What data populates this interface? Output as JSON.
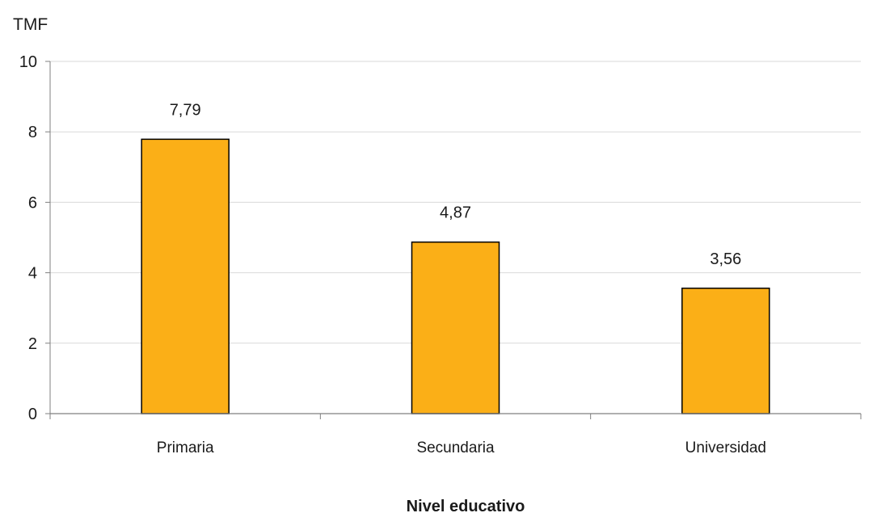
{
  "chart_data": {
    "type": "bar",
    "categories": [
      "Primaria",
      "Secundaria",
      "Universidad"
    ],
    "values": [
      7.79,
      4.87,
      3.56
    ],
    "data_labels": [
      "7,79",
      "4,87",
      "3,56"
    ],
    "ylabel": "TMF",
    "xlabel": "Nivel educativo",
    "ylim": [
      0,
      10
    ],
    "yticks": [
      0,
      2,
      4,
      6,
      8,
      10
    ],
    "grid": true,
    "bar_color": "#FBAF17",
    "bar_edge_color": "#000000",
    "grid_color": "#D9D9D9"
  }
}
